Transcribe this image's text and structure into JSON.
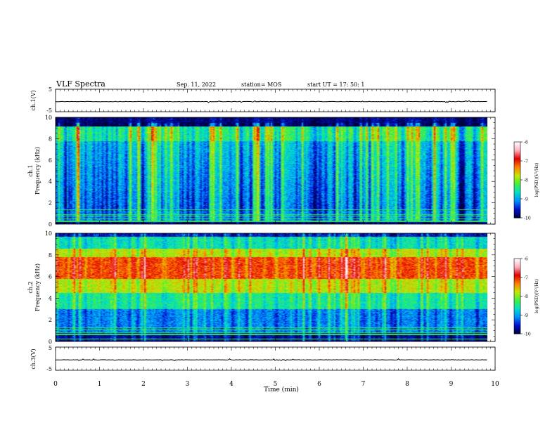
{
  "header": {
    "title": "VLF Spectra",
    "date": "Sep. 11, 2022",
    "station": "station= MOS",
    "start": "start  UT  =   17: 50: 1"
  },
  "chart_data": [
    {
      "panel": "ch1-voltage",
      "type": "line",
      "ylabel": "ch.1(V)",
      "ylim": [
        -5,
        5
      ],
      "yticks": [
        "5",
        "-5"
      ],
      "baseline_value": -0.5,
      "series_color": "#000000"
    },
    {
      "panel": "ch1-spectrogram",
      "type": "heatmap",
      "ylabel_line1": "ch.1",
      "ylabel_line2": "Frequency (kHz)",
      "ylim": [
        0,
        10
      ],
      "yticks": [
        "0",
        "2",
        "4",
        "6",
        "8",
        "10"
      ],
      "colorbar": {
        "label": "log(PSD)(V²/Hz)",
        "range": [
          -10,
          -6
        ],
        "ticks": [
          "-6",
          "-7",
          "-8",
          "-9",
          "-10"
        ],
        "colors": [
          "#00003c",
          "#0010d0",
          "#0090ff",
          "#00e0c8",
          "#40f040",
          "#c8e800",
          "#ff8000",
          "#e00000",
          "#ffb0c0",
          "#ffffff"
        ]
      }
    },
    {
      "panel": "ch2-spectrogram",
      "type": "heatmap",
      "ylabel_line1": "ch.2",
      "ylabel_line2": "Frequency (kHz)",
      "ylim": [
        0,
        10
      ],
      "yticks": [
        "0",
        "2",
        "4",
        "6",
        "8",
        "10"
      ],
      "colorbar": {
        "label": "log(PSD)(V²/Hz)",
        "range": [
          -10,
          -6
        ],
        "ticks": [
          "-6",
          "-7",
          "-8",
          "-9",
          "-10"
        ]
      }
    },
    {
      "panel": "ch3-voltage",
      "type": "line",
      "ylabel": "ch.3(V)",
      "ylim": [
        -5,
        5
      ],
      "yticks": [
        "5",
        "-5"
      ],
      "baseline_value": -0.5,
      "series_color": "#000000"
    }
  ],
  "xaxis": {
    "label": "Time (min)",
    "xlim": [
      0,
      10
    ],
    "ticks": [
      "0",
      "1",
      "2",
      "3",
      "4",
      "5",
      "6",
      "7",
      "8",
      "9",
      "10"
    ]
  }
}
